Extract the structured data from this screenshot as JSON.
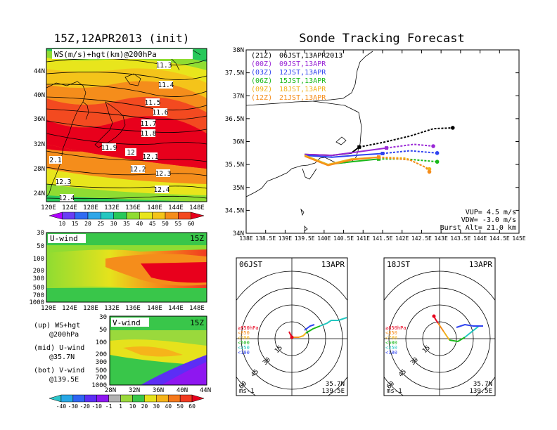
{
  "colors": {
    "ws_scale": [
      "#b000ff",
      "#6a3df5",
      "#2f6bf2",
      "#2ea6e8",
      "#23c7c0",
      "#27c85a",
      "#8fdc32",
      "#e8e51c",
      "#f4c41a",
      "#f58d1b",
      "#f34a20",
      "#e8001c"
    ],
    "wind_scale": [
      "#2cc5c9",
      "#27a7e6",
      "#2f64f3",
      "#5c2ef5",
      "#8e17f0",
      "#b2b2b2",
      "#9ad93c",
      "#39c64a",
      "#e6e21c",
      "#f6b41a",
      "#f5791b",
      "#f13a20",
      "#e8001c"
    ],
    "track": [
      "#000000",
      "#9a28d6",
      "#2f43f0",
      "#19b919",
      "#f2b21c",
      "#f58d1b"
    ]
  },
  "left_top": {
    "title": "15Z,12APR2013 (init)",
    "legend": "WS(m/s)+hgt(km)@200hPa",
    "y_ticks": [
      "44N",
      "40N",
      "36N",
      "32N",
      "28N",
      "24N"
    ],
    "x_ticks": [
      "120E",
      "124E",
      "128E",
      "132E",
      "136E",
      "140E",
      "144E",
      "148E"
    ],
    "contour_labels": [
      "11.3",
      "11.4",
      "11.5",
      "11.6",
      "11.7",
      "11.8",
      "11.9",
      "12",
      "12.1",
      "12.2",
      "12.3",
      "12.3",
      "12.4",
      "12.4",
      "2.1"
    ],
    "colorbar": [
      "10",
      "15",
      "20",
      "25",
      "30",
      "35",
      "40",
      "45",
      "50",
      "55",
      "60"
    ]
  },
  "u_panel": {
    "label": "U-wind",
    "time": "15Z",
    "y_ticks": [
      "30",
      "50",
      "100",
      "200",
      "300",
      "500",
      "700",
      "1000"
    ],
    "x_ticks": [
      "120E",
      "124E",
      "128E",
      "132E",
      "136E",
      "140E",
      "144E",
      "148E"
    ]
  },
  "v_panel": {
    "label": "V-wind",
    "time": "15Z",
    "y_ticks": [
      "30",
      "50",
      "100",
      "200",
      "300",
      "500",
      "700",
      "1000"
    ],
    "x_ticks": [
      "28N",
      "32N",
      "36N",
      "40N",
      "44N"
    ]
  },
  "notes": [
    {
      "a": "(up) WS+hgt",
      "b": "@200hPa"
    },
    {
      "a": "(mid) U-wind",
      "b": "@35.7N"
    },
    {
      "a": "(bot) V-wind",
      "b": "@139.5E"
    }
  ],
  "wind_colorbar": [
    "-40",
    "-30",
    "-20",
    "-10",
    "-1",
    "1",
    "10",
    "20",
    "30",
    "40",
    "50",
    "60"
  ],
  "track_panel": {
    "title": "Sonde Tracking Forecast",
    "y_ticks": [
      "38N",
      "37.5N",
      "37N",
      "36.5N",
      "36N",
      "35.5N",
      "35N",
      "34.5N",
      "34N"
    ],
    "x_ticks": [
      "138E",
      "138.5E",
      "139E",
      "139.5E",
      "140E",
      "140.5E",
      "141E",
      "141.5E",
      "142E",
      "142.5E",
      "143E",
      "143.5E",
      "144E",
      "144.5E",
      "145E"
    ],
    "legend": [
      {
        "z": "(21Z)",
        "t": "06JST,13APR2013"
      },
      {
        "z": "(00Z)",
        "t": "09JST,13APR"
      },
      {
        "z": "(03Z)",
        "t": "12JST,13APR"
      },
      {
        "z": "(06Z)",
        "t": "15JST,13APR"
      },
      {
        "z": "(09Z)",
        "t": "18JST,13APR"
      },
      {
        "z": "(12Z)",
        "t": "21JST,13APR"
      }
    ],
    "info": [
      "VUP= 4.5 m/s",
      "VDW= -3.0 m/s",
      "Burst Alt= 21.0 km"
    ]
  },
  "hodo_left": {
    "time": "06JST",
    "date": "13APR",
    "lat": "35.7N",
    "lon": "139.5E",
    "unit": "ms-1",
    "rings": [
      "15",
      "30",
      "45",
      "60"
    ],
    "levels": [
      "≥850hPa",
      "<850",
      "<700",
      "<500",
      "<250",
      "<100"
    ]
  },
  "hodo_right": {
    "time": "18JST",
    "date": "13APR",
    "lat": "35.7N",
    "lon": "139.5E",
    "unit": "ms-1",
    "rings": [
      "15",
      "30",
      "45",
      "60"
    ],
    "levels": [
      "≥850hPa",
      "<850",
      "<700",
      "<500",
      "<250",
      "<100"
    ]
  },
  "chart_data": {
    "type": "line",
    "title": "Sonde Tracking Forecast",
    "xlabel": "",
    "ylabel": "",
    "xlim": [
      138,
      145
    ],
    "ylim": [
      34,
      38
    ],
    "series": [
      {
        "name": "06JST,13APR2013",
        "color": "#000000",
        "points": [
          [
            139.5,
            35.72
          ],
          [
            140.2,
            35.7
          ],
          [
            140.7,
            35.75
          ],
          [
            140.9,
            35.88
          ],
          [
            141.5,
            35.98
          ],
          [
            142.2,
            36.12
          ],
          [
            142.8,
            36.28
          ],
          [
            143.3,
            36.3
          ]
        ]
      },
      {
        "name": "09JST,13APR",
        "color": "#9a28d6",
        "points": [
          [
            139.5,
            35.72
          ],
          [
            140.2,
            35.7
          ],
          [
            140.9,
            35.78
          ],
          [
            141.6,
            35.86
          ],
          [
            142.3,
            35.94
          ],
          [
            142.8,
            35.9
          ]
        ]
      },
      {
        "name": "12JST,13APR",
        "color": "#2f43f0",
        "points": [
          [
            139.5,
            35.7
          ],
          [
            140.2,
            35.66
          ],
          [
            140.8,
            35.7
          ],
          [
            141.5,
            35.74
          ],
          [
            142.2,
            35.8
          ],
          [
            142.9,
            35.75
          ]
        ]
      },
      {
        "name": "15JST,13APR",
        "color": "#19b919",
        "points": [
          [
            139.5,
            35.7
          ],
          [
            140.1,
            35.5
          ],
          [
            140.7,
            35.56
          ],
          [
            141.4,
            35.62
          ],
          [
            142.1,
            35.62
          ],
          [
            142.9,
            35.56
          ]
        ]
      },
      {
        "name": "18JST,13APR",
        "color": "#f2b21c",
        "points": [
          [
            139.5,
            35.7
          ],
          [
            140.1,
            35.5
          ],
          [
            140.7,
            35.62
          ],
          [
            141.4,
            35.66
          ],
          [
            142.1,
            35.64
          ],
          [
            142.5,
            35.48
          ],
          [
            142.7,
            35.4
          ]
        ]
      },
      {
        "name": "21JST,13APR",
        "color": "#f58d1b",
        "points": [
          [
            139.5,
            35.68
          ],
          [
            140.1,
            35.48
          ],
          [
            140.7,
            35.6
          ],
          [
            141.4,
            35.66
          ],
          [
            142.2,
            35.6
          ],
          [
            142.6,
            35.44
          ],
          [
            142.7,
            35.34
          ]
        ]
      }
    ]
  }
}
